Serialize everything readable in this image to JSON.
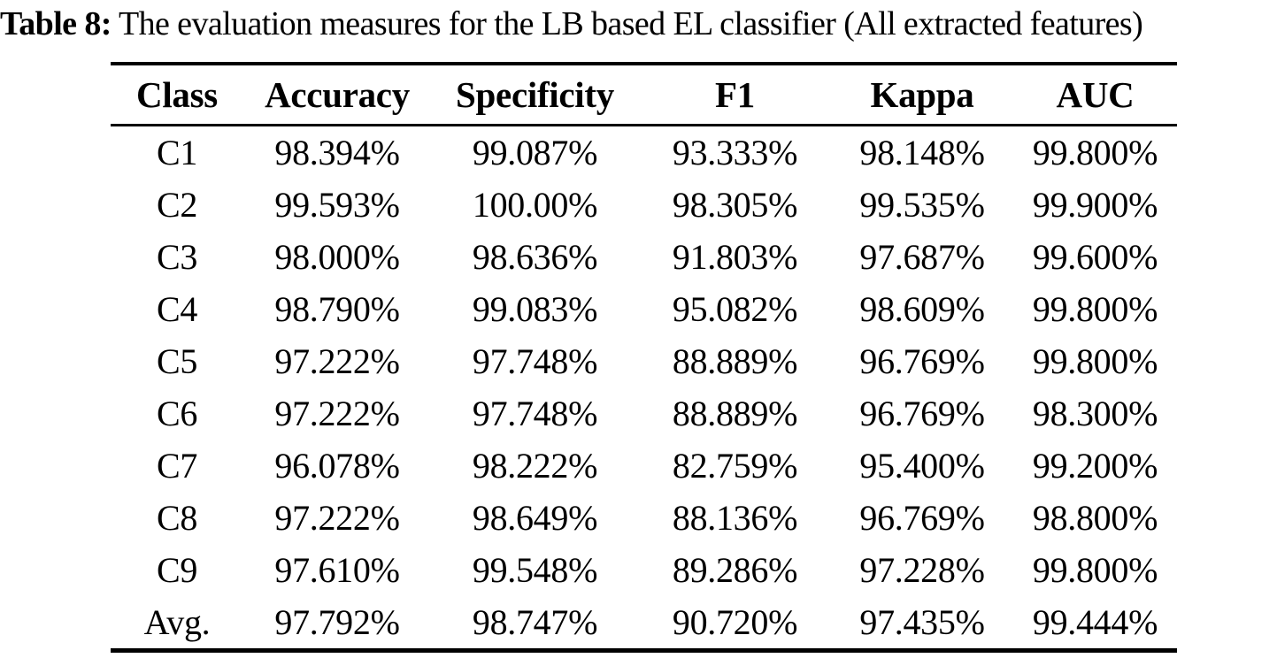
{
  "caption": {
    "label": "Table 8:",
    "text": "The evaluation measures for the LB based EL classifier (All extracted features)"
  },
  "table": {
    "columns": [
      "Class",
      "Accuracy",
      "Specificity",
      "F1",
      "Kappa",
      "AUC"
    ],
    "rows": [
      {
        "class": "C1",
        "values": [
          "98.394%",
          "99.087%",
          "93.333%",
          "98.148%",
          "99.800%"
        ]
      },
      {
        "class": "C2",
        "values": [
          "99.593%",
          "100.00%",
          "98.305%",
          "99.535%",
          "99.900%"
        ]
      },
      {
        "class": "C3",
        "values": [
          "98.000%",
          "98.636%",
          "91.803%",
          "97.687%",
          "99.600%"
        ]
      },
      {
        "class": "C4",
        "values": [
          "98.790%",
          "99.083%",
          "95.082%",
          "98.609%",
          "99.800%"
        ]
      },
      {
        "class": "C5",
        "values": [
          "97.222%",
          "97.748%",
          "88.889%",
          "96.769%",
          "99.800%"
        ]
      },
      {
        "class": "C6",
        "values": [
          "97.222%",
          "97.748%",
          "88.889%",
          "96.769%",
          "98.300%"
        ]
      },
      {
        "class": "C7",
        "values": [
          "96.078%",
          "98.222%",
          "82.759%",
          "95.400%",
          "99.200%"
        ]
      },
      {
        "class": "C8",
        "values": [
          "97.222%",
          "98.649%",
          "88.136%",
          "96.769%",
          "98.800%"
        ]
      },
      {
        "class": "C9",
        "values": [
          "97.610%",
          "99.548%",
          "89.286%",
          "97.228%",
          "99.800%"
        ]
      },
      {
        "class": "Avg.",
        "values": [
          "97.792%",
          "98.747%",
          "90.720%",
          "97.435%",
          "99.444%"
        ]
      }
    ]
  },
  "colors": {
    "text": "#000000",
    "background": "#ffffff",
    "rule": "#000000"
  },
  "chart_data": {
    "type": "table",
    "title": "Table 8: The evaluation measures for the LB based EL classifier (All extracted features)",
    "columns": [
      "Class",
      "Accuracy",
      "Specificity",
      "F1",
      "Kappa",
      "AUC"
    ],
    "rows": [
      [
        "C1",
        "98.394%",
        "99.087%",
        "93.333%",
        "98.148%",
        "99.800%"
      ],
      [
        "C2",
        "99.593%",
        "100.00%",
        "98.305%",
        "99.535%",
        "99.900%"
      ],
      [
        "C3",
        "98.000%",
        "98.636%",
        "91.803%",
        "97.687%",
        "99.600%"
      ],
      [
        "C4",
        "98.790%",
        "99.083%",
        "95.082%",
        "98.609%",
        "99.800%"
      ],
      [
        "C5",
        "97.222%",
        "97.748%",
        "88.889%",
        "96.769%",
        "99.800%"
      ],
      [
        "C6",
        "97.222%",
        "97.748%",
        "88.889%",
        "96.769%",
        "98.300%"
      ],
      [
        "C7",
        "96.078%",
        "98.222%",
        "82.759%",
        "95.400%",
        "99.200%"
      ],
      [
        "C8",
        "97.222%",
        "98.649%",
        "88.136%",
        "96.769%",
        "98.800%"
      ],
      [
        "C9",
        "97.610%",
        "99.548%",
        "89.286%",
        "97.228%",
        "99.800%"
      ],
      [
        "Avg.",
        "97.792%",
        "98.747%",
        "90.720%",
        "97.435%",
        "99.444%"
      ]
    ]
  }
}
